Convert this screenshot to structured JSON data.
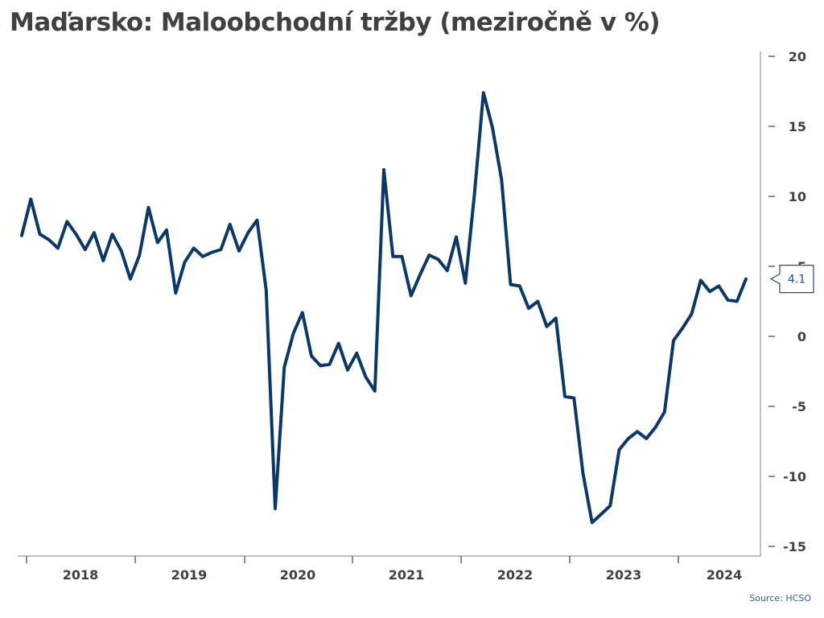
{
  "chart_data": {
    "type": "line",
    "title": "Maďarsko: Maloobchodní tržby (meziročně v %)",
    "source": "Source: HCSO",
    "xlabel": "",
    "ylabel": "",
    "ylim": [
      -15,
      20
    ],
    "yticks": [
      "20",
      "15",
      "10",
      "5",
      "0",
      "-5",
      "-10",
      "-15"
    ],
    "ytick_values": [
      20,
      15,
      10,
      5,
      0,
      -5,
      -10,
      -15
    ],
    "xtick_labels": [
      "2018",
      "2019",
      "2020",
      "2021",
      "2022",
      "2023",
      "2024"
    ],
    "y_axis_side": "right",
    "grid": false,
    "line_color": "#0b3866",
    "last_value_label": "4.1",
    "series": [
      {
        "values": [
          7.2,
          9.8,
          7.3,
          6.9,
          6.3,
          8.2,
          7.3,
          6.2,
          7.4,
          5.4,
          7.3,
          6.1,
          4.1,
          5.8,
          9.2,
          6.7,
          7.6,
          3.1,
          5.3,
          6.3,
          5.7,
          6.0,
          6.2,
          8.0,
          6.1,
          7.4,
          8.3,
          3.3,
          -12.3,
          -2.2,
          0.2,
          1.7,
          -1.4,
          -2.1,
          -2.0,
          -0.5,
          -2.4,
          -1.2,
          -2.9,
          -3.9,
          11.9,
          5.7,
          5.7,
          2.9,
          4.4,
          5.8,
          5.5,
          4.7,
          7.1,
          3.8,
          10.1,
          17.4,
          14.9,
          11.2,
          3.7,
          3.6,
          2.0,
          2.5,
          0.7,
          1.3,
          -4.3,
          -4.4,
          -9.8,
          -13.3,
          -12.7,
          -12.1,
          -8.1,
          -7.3,
          -6.8,
          -7.3,
          -6.5,
          -5.4,
          -0.3,
          0.6,
          1.6,
          4.0,
          3.2,
          3.6,
          2.6,
          2.5,
          4.1
        ]
      }
    ]
  }
}
